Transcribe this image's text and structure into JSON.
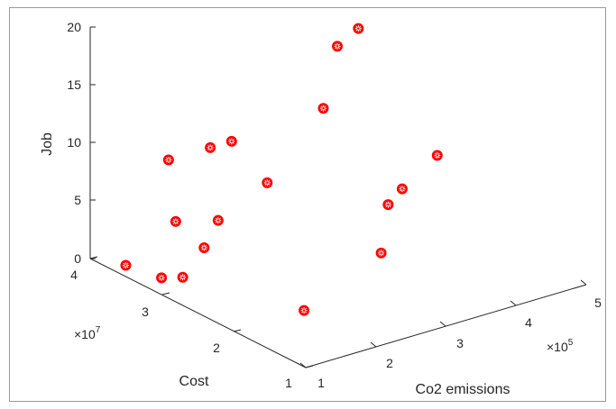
{
  "chart_data": {
    "type": "scatter",
    "zlabel": "Job",
    "ylabel": "Cost",
    "xlabel": "Co2 emissions",
    "z_ticks": [
      "0",
      "5",
      "10",
      "15",
      "20"
    ],
    "y_ticks": [
      "1",
      "2",
      "3",
      "4"
    ],
    "x_ticks": [
      "1",
      "2",
      "3",
      "4",
      "5"
    ],
    "y_exponent_base": "×10",
    "y_exponent_power": "7",
    "x_exponent_base": "×10",
    "x_exponent_power": "5",
    "zlim": [
      0,
      20
    ],
    "ylim": [
      1,
      4
    ],
    "xlim": [
      1,
      5
    ],
    "grid": false,
    "marker_color": "#ff0000",
    "points": [
      {
        "x": 1.2,
        "y": 3.7,
        "z": 0
      },
      {
        "x": 1.3,
        "y": 3.3,
        "z": 0
      },
      {
        "x": 1.5,
        "y": 3.2,
        "z": 0
      },
      {
        "x": 1.6,
        "y": 3.0,
        "z": 3
      },
      {
        "x": 1.4,
        "y": 3.2,
        "z": 5
      },
      {
        "x": 1.4,
        "y": 3.3,
        "z": 10
      },
      {
        "x": 1.8,
        "y": 3.0,
        "z": 5
      },
      {
        "x": 2.2,
        "y": 3.5,
        "z": 9
      },
      {
        "x": 2.3,
        "y": 3.3,
        "z": 10
      },
      {
        "x": 2.0,
        "y": 2.0,
        "z": 0
      },
      {
        "x": 2.5,
        "y": 3.0,
        "z": 7
      },
      {
        "x": 3.3,
        "y": 3.0,
        "z": 12
      },
      {
        "x": 3.2,
        "y": 2.0,
        "z": 7
      },
      {
        "x": 3.4,
        "y": 2.0,
        "z": 8
      },
      {
        "x": 3.1,
        "y": 2.0,
        "z": 3
      },
      {
        "x": 3.5,
        "y": 3.0,
        "z": 17
      },
      {
        "x": 3.8,
        "y": 3.0,
        "z": 18
      },
      {
        "x": 3.9,
        "y": 2.0,
        "z": 10
      }
    ]
  }
}
